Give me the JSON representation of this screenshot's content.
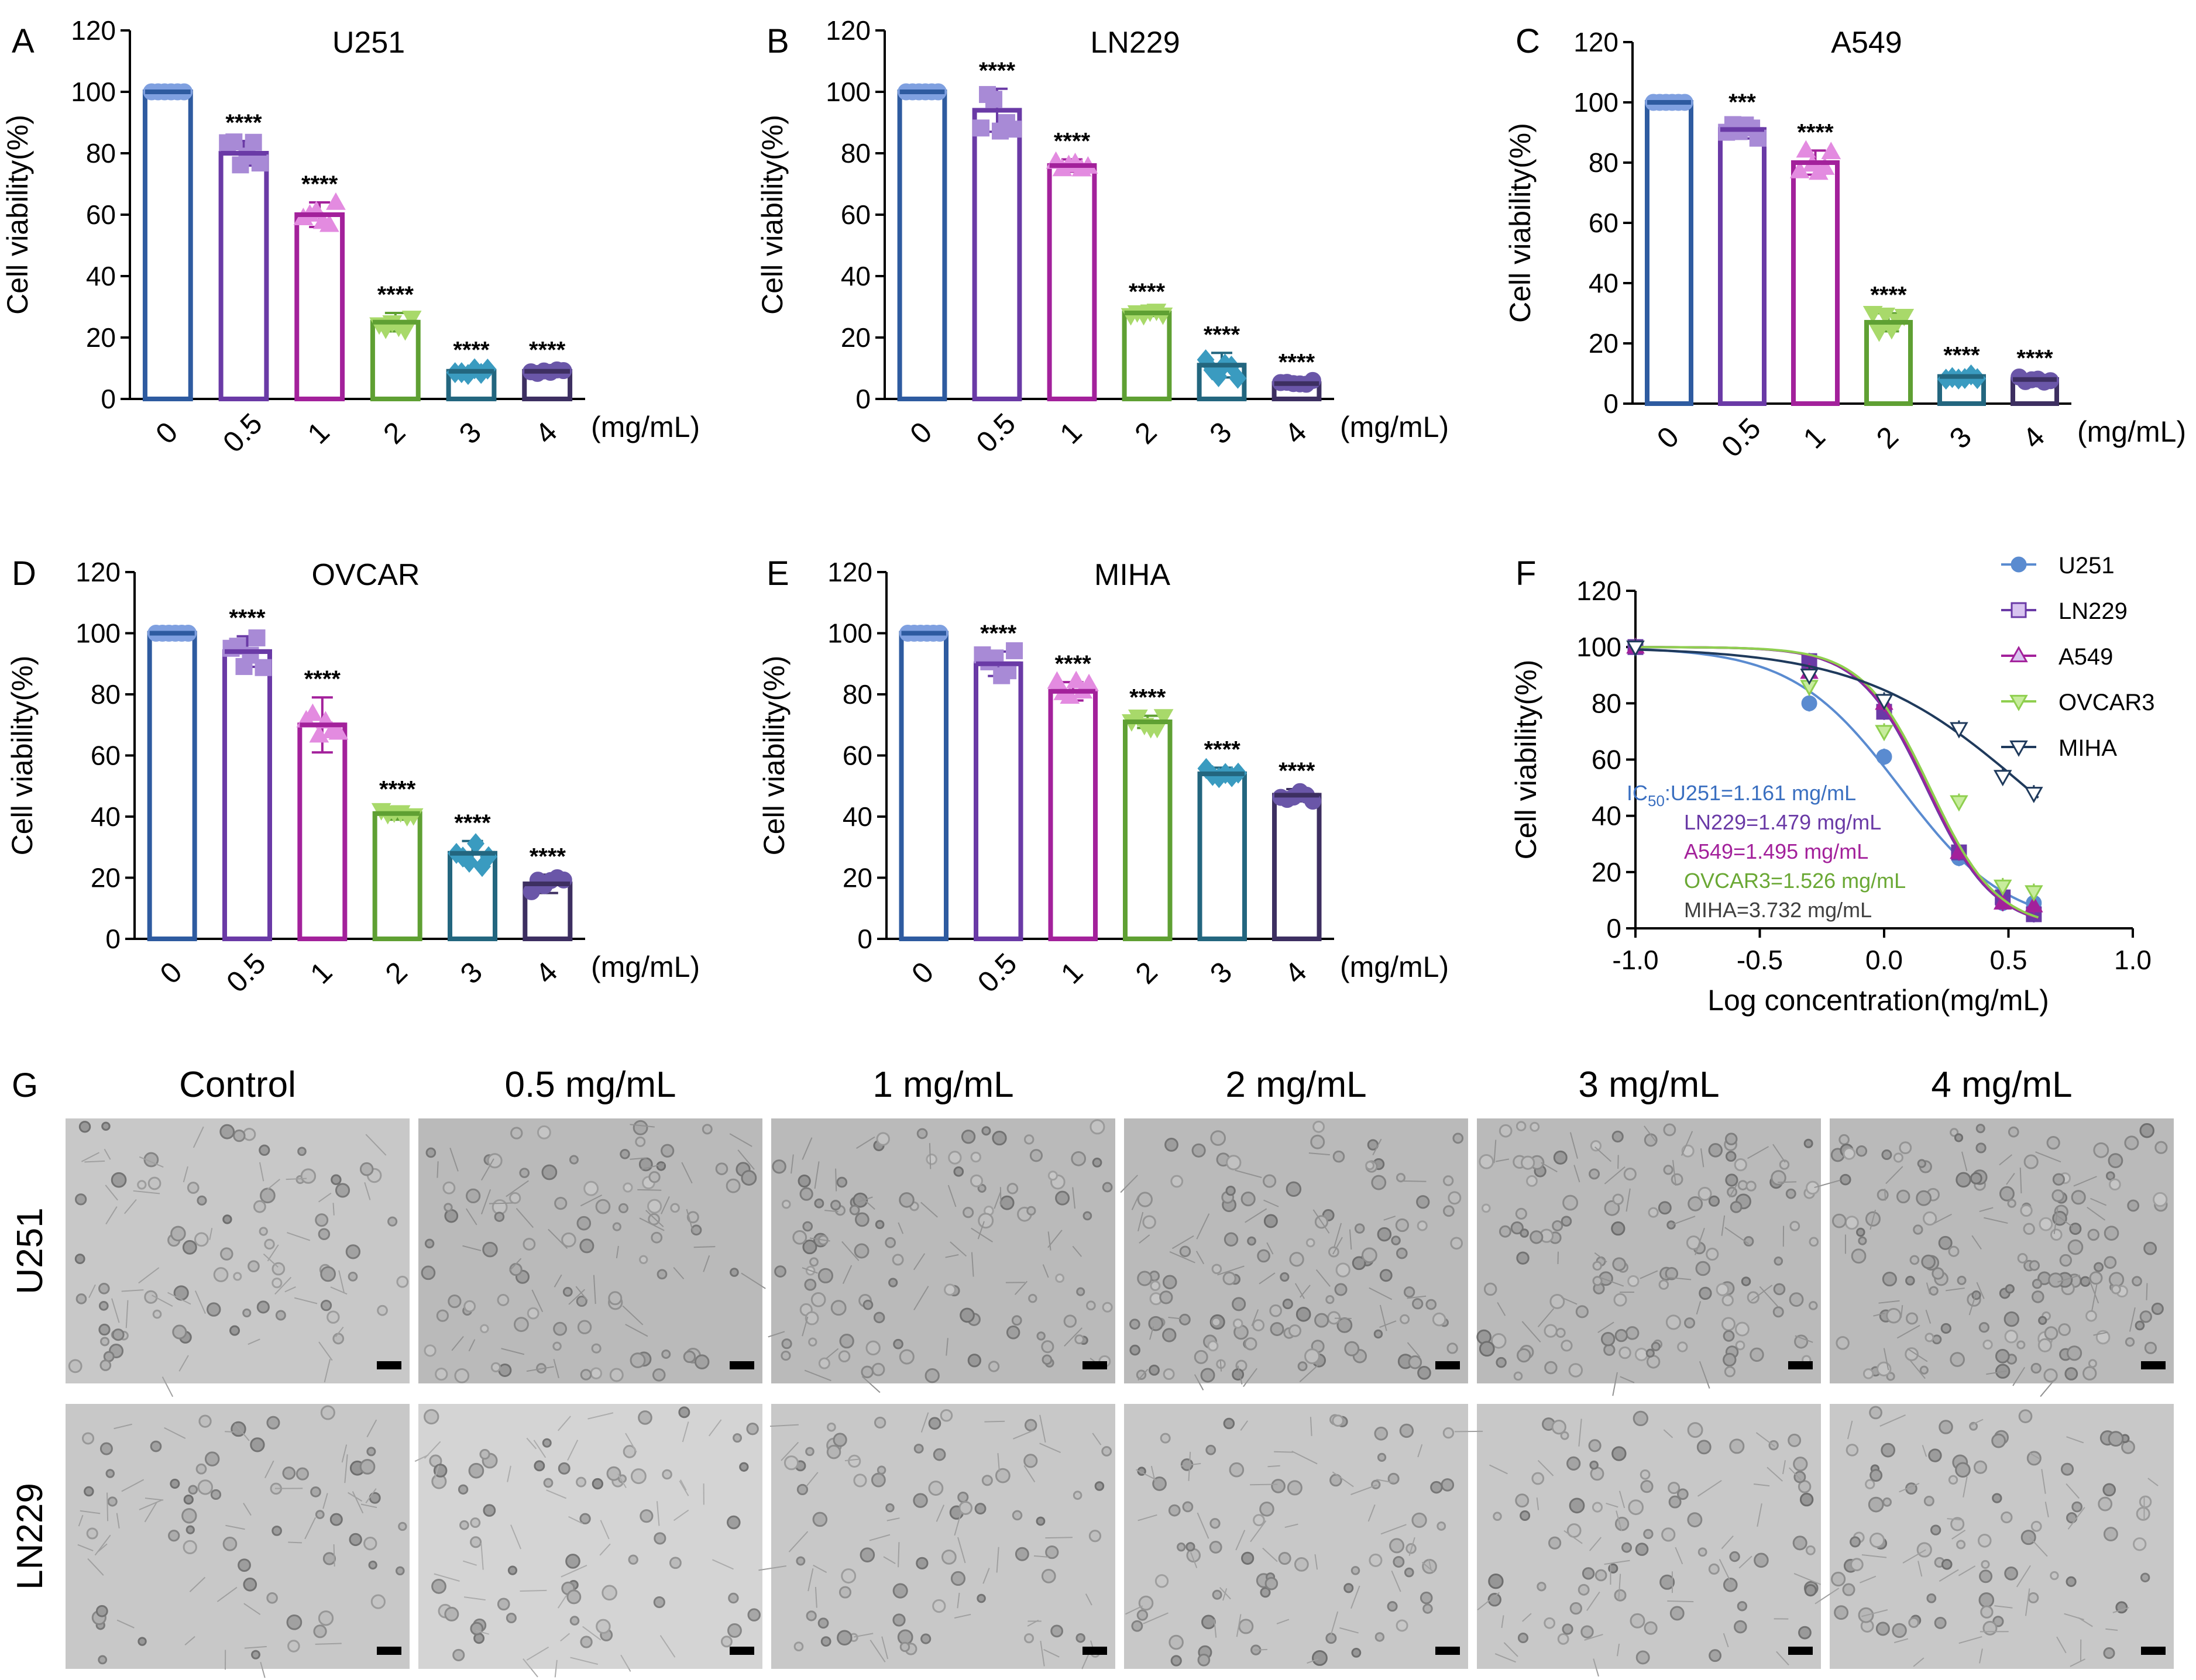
{
  "figure": {
    "image_G": {
      "panel_label": "G",
      "column_titles": [
        "Control",
        "0.5 mg/mL",
        "1 mg/mL",
        "2 mg/mL",
        "3 mg/mL",
        "4 mg/mL"
      ],
      "row_labels": [
        "U251",
        "LN229"
      ]
    }
  },
  "colors": {
    "bars": [
      "#2e5ba0",
      "#6a3aa6",
      "#a3219b",
      "#5fa033",
      "#23667f",
      "#3d2f61"
    ],
    "points": [
      "#7fa0e0",
      "#a88ad6",
      "#e38be0",
      "#a8d96a",
      "#3a9bc0",
      "#6a56a8"
    ],
    "curves": {
      "U251": "#5a8bd0",
      "LN229": "#6a3aa6",
      "A549": "#a3219b",
      "OVCAR3": "#8fcf4f",
      "MIHA": "#1f3a5c"
    }
  },
  "chart_data": [
    {
      "panel": "A",
      "type": "bar",
      "title": "U251",
      "categories": [
        "0",
        "0.5",
        "1",
        "2",
        "3",
        "4"
      ],
      "unit": "(mg/mL)",
      "values": [
        100,
        80,
        60,
        25,
        9,
        9
      ],
      "errors": [
        0,
        4,
        4,
        3,
        1,
        1
      ],
      "significance": [
        "",
        "****",
        "****",
        "****",
        "****",
        "****"
      ],
      "ylabel": "Cell viability(%)",
      "ylim": [
        0,
        120
      ],
      "yticks": [
        "0",
        "20",
        "40",
        "60",
        "80",
        "100",
        "120"
      ]
    },
    {
      "panel": "B",
      "type": "bar",
      "title": "LN229",
      "categories": [
        "0",
        "0.5",
        "1",
        "2",
        "3",
        "4"
      ],
      "unit": "(mg/mL)",
      "values": [
        100,
        94,
        76,
        28,
        11,
        5
      ],
      "errors": [
        0,
        7,
        2,
        1,
        4,
        1
      ],
      "significance": [
        "",
        "****",
        "****",
        "****",
        "****",
        "****"
      ],
      "ylabel": "Cell viability(%)",
      "ylim": [
        0,
        120
      ],
      "yticks": [
        "0",
        "20",
        "40",
        "60",
        "80",
        "100",
        "120"
      ]
    },
    {
      "panel": "C",
      "type": "bar",
      "title": "A549",
      "categories": [
        "0",
        "0.5",
        "1",
        "2",
        "3",
        "4"
      ],
      "unit": "(mg/mL)",
      "values": [
        100,
        91,
        80,
        27,
        9,
        8
      ],
      "errors": [
        0,
        3,
        4,
        3,
        1,
        1
      ],
      "significance": [
        "",
        "***",
        "****",
        "****",
        "****",
        "****"
      ],
      "ylabel": "Cell viability(%)",
      "ylim": [
        0,
        120
      ],
      "yticks": [
        "0",
        "20",
        "40",
        "60",
        "80",
        "100",
        "120"
      ]
    },
    {
      "panel": "D",
      "type": "bar",
      "title": "OVCAR",
      "categories": [
        "0",
        "0.5",
        "1",
        "2",
        "3",
        "4"
      ],
      "unit": "(mg/mL)",
      "values": [
        100,
        94,
        70,
        41,
        28,
        18
      ],
      "errors": [
        0,
        5,
        9,
        2,
        4,
        3
      ],
      "significance": [
        "",
        "****",
        "****",
        "****",
        "****",
        "****"
      ],
      "ylabel": "Cell viability(%)",
      "ylim": [
        0,
        120
      ],
      "yticks": [
        "0",
        "20",
        "40",
        "60",
        "80",
        "100",
        "120"
      ]
    },
    {
      "panel": "E",
      "type": "bar",
      "title": "MIHA",
      "categories": [
        "0",
        "0.5",
        "1",
        "2",
        "3",
        "4"
      ],
      "unit": "(mg/mL)",
      "values": [
        100,
        90,
        81,
        71,
        54,
        47
      ],
      "errors": [
        0,
        4,
        3,
        2,
        2,
        2
      ],
      "significance": [
        "",
        "****",
        "****",
        "****",
        "****",
        "****"
      ],
      "ylabel": "Cell viability(%)",
      "ylim": [
        0,
        120
      ],
      "yticks": [
        "0",
        "20",
        "40",
        "60",
        "80",
        "100",
        "120"
      ]
    },
    {
      "panel": "F",
      "type": "scatter",
      "xlabel": "Log concentration(mg/mL)",
      "ylabel": "Cell viability(%)",
      "xlim": [
        -1.0,
        1.0
      ],
      "ylim": [
        0,
        120
      ],
      "xticks": [
        "-1.0",
        "-0.5",
        "0.0",
        "0.5",
        "1.0"
      ],
      "yticks": [
        "0",
        "20",
        "40",
        "60",
        "80",
        "100",
        "120"
      ],
      "x": [
        -1.0,
        -0.301,
        0.0,
        0.301,
        0.477,
        0.602
      ],
      "series": [
        {
          "name": "U251",
          "marker": "circle",
          "values": [
            100,
            80,
            61,
            25,
            9,
            9
          ],
          "ic50_log": 0.065
        },
        {
          "name": "LN229",
          "marker": "square",
          "values": [
            100,
            95,
            77,
            27,
            11,
            5
          ],
          "ic50_log": 0.17
        },
        {
          "name": "A549",
          "marker": "triangle-up",
          "values": [
            100,
            91,
            80,
            27,
            9,
            8
          ],
          "ic50_log": 0.175
        },
        {
          "name": "OVCAR3",
          "marker": "triangle-down",
          "values": [
            100,
            86,
            70,
            45,
            15,
            13
          ],
          "ic50_log": 0.184
        },
        {
          "name": "MIHA",
          "marker": "triangle-down-open",
          "values": [
            100,
            90,
            81,
            71,
            54,
            48
          ],
          "ic50_log": 0.572
        }
      ],
      "ic50_labels": [
        {
          "prefix": "IC",
          "sub": "50",
          "text": ":U251=1.161 mg/mL"
        },
        {
          "text": "LN229=1.479 mg/mL"
        },
        {
          "text": "A549=1.495 mg/mL"
        },
        {
          "text": "OVCAR3=1.526 mg/mL"
        },
        {
          "text": "MIHA=3.732 mg/mL"
        }
      ]
    }
  ]
}
